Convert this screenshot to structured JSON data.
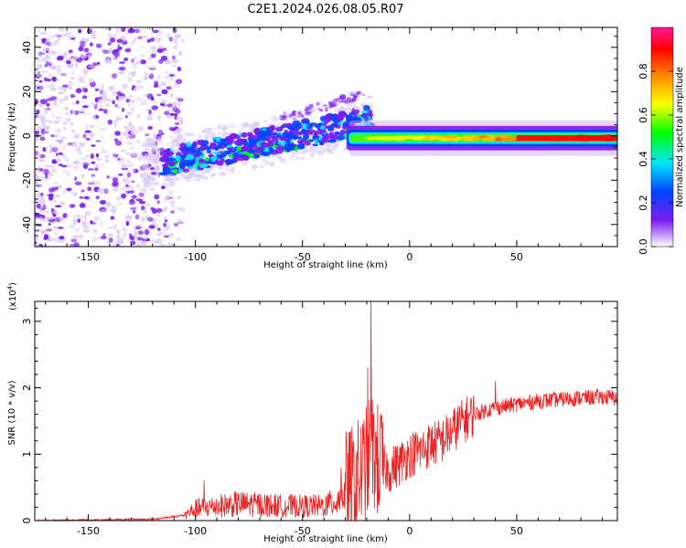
{
  "title": "C2E1.2024.026.08.05.R07",
  "colors": {
    "spectrogram_min": "#d9c8f2",
    "spectrogram_base": "#7a1cf0",
    "snr_line": "#ee2222"
  },
  "chart_data": [
    {
      "type": "heatmap",
      "name": "spectrogram",
      "xlabel": "Height of straight line (km)",
      "ylabel": "Frequency (Hz)",
      "xlim": [
        -175,
        97
      ],
      "ylim": [
        -50,
        49
      ],
      "x_ticks": [
        -150,
        -100,
        -50,
        0,
        50
      ],
      "y_ticks": [
        -40,
        -20,
        0,
        20,
        40
      ],
      "x_tick_labels": [
        "-150",
        "-100",
        "-50",
        "0",
        "50"
      ],
      "y_tick_labels": [
        "-40",
        "-20",
        "0",
        "20",
        "40"
      ],
      "features": [
        {
          "description": "diffuse noise",
          "x_range": [
            -175,
            -112
          ],
          "y_range": [
            -50,
            49
          ],
          "amplitude": 0.05
        },
        {
          "description": "rising signal track",
          "x_range": [
            -115,
            -18
          ],
          "y_start": [
            -12,
            7
          ],
          "amplitude": 0.3
        },
        {
          "description": "steady carrier line",
          "x_range": [
            -28,
            97
          ],
          "y_center": -1,
          "amplitude": 0.95
        }
      ],
      "colorbar": {
        "label": "Normalized spectral amplitude",
        "range": [
          0,
          1
        ],
        "ticks": [
          0.0,
          0.2,
          0.4,
          0.6,
          0.8
        ],
        "tick_labels": [
          "0.0",
          "0.2",
          "0.4",
          "0.6",
          "0.8"
        ],
        "colors": [
          "#ffffff",
          "#7a1cf0",
          "#0044ff",
          "#00e5ff",
          "#00ff00",
          "#ffff00",
          "#ff8800",
          "#ff0000",
          "#ff1493"
        ]
      }
    },
    {
      "type": "line",
      "name": "snr",
      "xlabel": "Height of straight line (km)",
      "ylabel": "SNR (10 * v/v)",
      "scale_label": "(x10",
      "scale_exponent": "4",
      "scale_close": ")",
      "xlim": [
        -175,
        97
      ],
      "ylim": [
        0,
        3.3
      ],
      "x_ticks": [
        -150,
        -100,
        -50,
        0,
        50
      ],
      "y_ticks": [
        0,
        1,
        2,
        3
      ],
      "x_tick_labels": [
        "-150",
        "-100",
        "-50",
        "0",
        "50"
      ],
      "y_tick_labels": [
        "0",
        "1",
        "2",
        "3"
      ],
      "color": "#ee2222",
      "envelope": {
        "x": [
          -175,
          -120,
          -105,
          -100,
          -90,
          -80,
          -70,
          -60,
          -50,
          -40,
          -35,
          -30,
          -25,
          -20,
          -18,
          -15,
          -10,
          -5,
          0,
          5,
          10,
          15,
          20,
          25,
          30,
          40,
          50,
          60,
          70,
          80,
          90,
          97
        ],
        "y": [
          0.0,
          0.02,
          0.08,
          0.18,
          0.22,
          0.25,
          0.24,
          0.22,
          0.22,
          0.22,
          0.28,
          0.45,
          0.6,
          0.85,
          1.1,
          0.9,
          0.75,
          0.85,
          1.0,
          1.05,
          1.15,
          1.2,
          1.35,
          1.5,
          1.6,
          1.7,
          1.75,
          1.8,
          1.82,
          1.85,
          1.86,
          1.85
        ]
      },
      "peaks": [
        {
          "x": -18,
          "y": 3.3
        },
        {
          "x": -19.5,
          "y": 2.3
        },
        {
          "x": -17,
          "y": 1.6
        },
        {
          "x": 40,
          "y": 2.1
        },
        {
          "x": -96,
          "y": 0.6
        },
        {
          "x": -32,
          "y": 0.8
        },
        {
          "x": -26,
          "y": 0.95
        }
      ]
    }
  ]
}
